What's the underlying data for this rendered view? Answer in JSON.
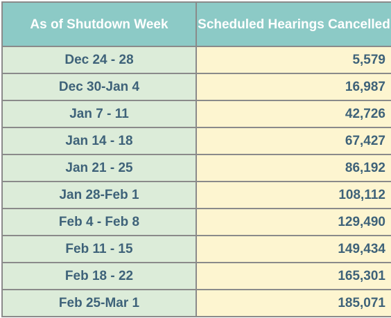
{
  "colors": {
    "header_bg": "#8ccac6",
    "week_bg": "#dcecd9",
    "count_bg": "#fdf5d0",
    "text": "#3e6279",
    "header_text": "#ffffff"
  },
  "chart_data": {
    "type": "table",
    "columns": [
      "As of Shutdown Week",
      "Scheduled Hearings Cancelled"
    ],
    "categories": [
      "Dec 24 - 28",
      "Dec 30-Jan 4",
      "Jan 7 - 11",
      "Jan 14 - 18",
      "Jan 21 - 25",
      "Jan 28-Feb 1",
      "Feb 4 - Feb 8",
      "Feb 11 - 15",
      "Feb 18 - 22",
      "Feb 25-Mar 1"
    ],
    "values": [
      5579,
      16987,
      42726,
      67427,
      86192,
      108112,
      129490,
      149434,
      165301,
      185071
    ],
    "rows": [
      {
        "week": "Dec 24 - 28",
        "cancelled": "5,579"
      },
      {
        "week": "Dec 30-Jan 4",
        "cancelled": "16,987"
      },
      {
        "week": "Jan 7 - 11",
        "cancelled": "42,726"
      },
      {
        "week": "Jan 14 - 18",
        "cancelled": "67,427"
      },
      {
        "week": "Jan 21 - 25",
        "cancelled": "86,192"
      },
      {
        "week": "Jan 28-Feb 1",
        "cancelled": "108,112"
      },
      {
        "week": "Feb 4 - Feb 8",
        "cancelled": "129,490"
      },
      {
        "week": "Feb 11 - 15",
        "cancelled": "149,434"
      },
      {
        "week": "Feb 18 - 22",
        "cancelled": "165,301"
      },
      {
        "week": "Feb 25-Mar 1",
        "cancelled": "185,071"
      }
    ]
  }
}
